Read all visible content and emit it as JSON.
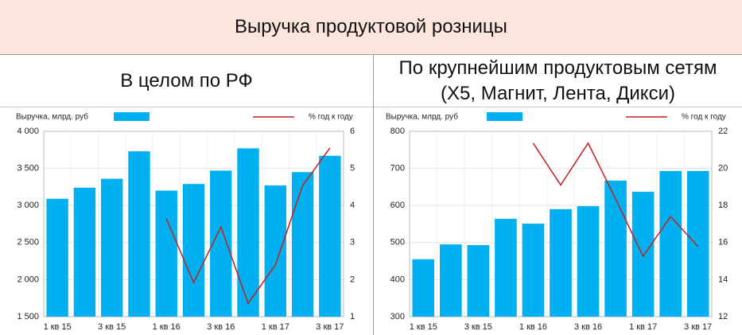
{
  "header": {
    "title": "Выручка продуктовой розницы"
  },
  "chart_data": [
    {
      "type": "bar",
      "title": "В целом по РФ",
      "categories": [
        "1 кв 15",
        null,
        "3 кв 15",
        null,
        "1 кв 16",
        null,
        "3 кв 16",
        null,
        "1 кв 17",
        null,
        "3 кв 17"
      ],
      "series": [
        {
          "name": "Выручка, млрд. руб",
          "color": "#00b0f0",
          "values": [
            3090,
            3240,
            3360,
            3730,
            3200,
            3290,
            3470,
            3770,
            3270,
            3450,
            3670
          ]
        },
        {
          "name": "% год к году",
          "color": "#c0201e",
          "type": "line",
          "axis": "y2",
          "values": [
            null,
            null,
            null,
            null,
            3.64,
            1.92,
            3.42,
            1.36,
            2.4,
            4.54,
            5.55
          ]
        }
      ],
      "ylim": [
        1500,
        4000
      ],
      "yticks": [
        {
          "value": 1500,
          "label": "1 500"
        },
        {
          "value": 2000,
          "label": "2 000"
        },
        {
          "value": 2500,
          "label": "2 500"
        },
        {
          "value": 3000,
          "label": "3 000"
        },
        {
          "value": 3500,
          "label": "3 500"
        },
        {
          "value": 4000,
          "label": "4 000"
        }
      ],
      "y2lim": [
        1,
        6
      ],
      "y2ticks": [
        1,
        2,
        3,
        4,
        5,
        6
      ],
      "grid": true
    },
    {
      "type": "bar",
      "title": "По крупнейшим продуктовым сетям (X5, Магнит, Лента, Дикси)",
      "categories": [
        "1 кв 15",
        null,
        "3 кв 15",
        null,
        "1 кв 16",
        null,
        "3 кв 16",
        null,
        "1 кв 17",
        null,
        "3 кв 17"
      ],
      "series": [
        {
          "name": "Выручка, млрд. руб",
          "color": "#00b0f0",
          "values": [
            455,
            495,
            493,
            564,
            551,
            590,
            598,
            667,
            637,
            693,
            693
          ]
        },
        {
          "name": "% год к году",
          "color": "#c0201e",
          "type": "line",
          "axis": "y2",
          "values": [
            null,
            null,
            null,
            null,
            21.36,
            19.1,
            21.36,
            18.35,
            15.26,
            17.4,
            15.78
          ]
        }
      ],
      "ylim": [
        300,
        800
      ],
      "yticks": [
        300,
        400,
        500,
        600,
        700,
        800
      ],
      "y2lim": [
        12,
        22
      ],
      "y2ticks": [
        12,
        14,
        16,
        18,
        20,
        22
      ],
      "grid": true
    }
  ]
}
